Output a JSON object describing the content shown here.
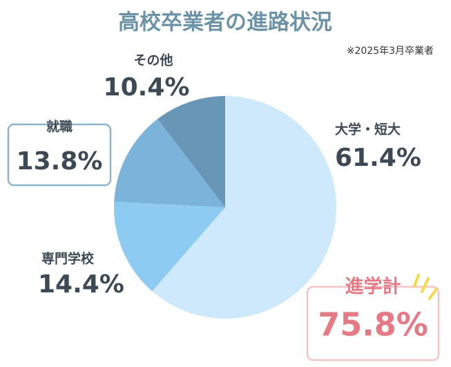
{
  "chart_data": {
    "type": "pie",
    "title": "高校卒業者の進路状況",
    "subtitle": "※2025年3月卒業者",
    "categories": [
      "大学・短大",
      "専門学校",
      "就職",
      "その他"
    ],
    "values": [
      61.4,
      14.4,
      13.8,
      10.4
    ],
    "value_labels": [
      "61.4%",
      "14.4%",
      "13.8%",
      "10.4%"
    ],
    "colors": [
      "#cde9fb",
      "#8dcbf2",
      "#7bb3da",
      "#6896b6"
    ],
    "total": {
      "label": "進学計",
      "value": 75.8,
      "value_label": "75.8%"
    }
  }
}
